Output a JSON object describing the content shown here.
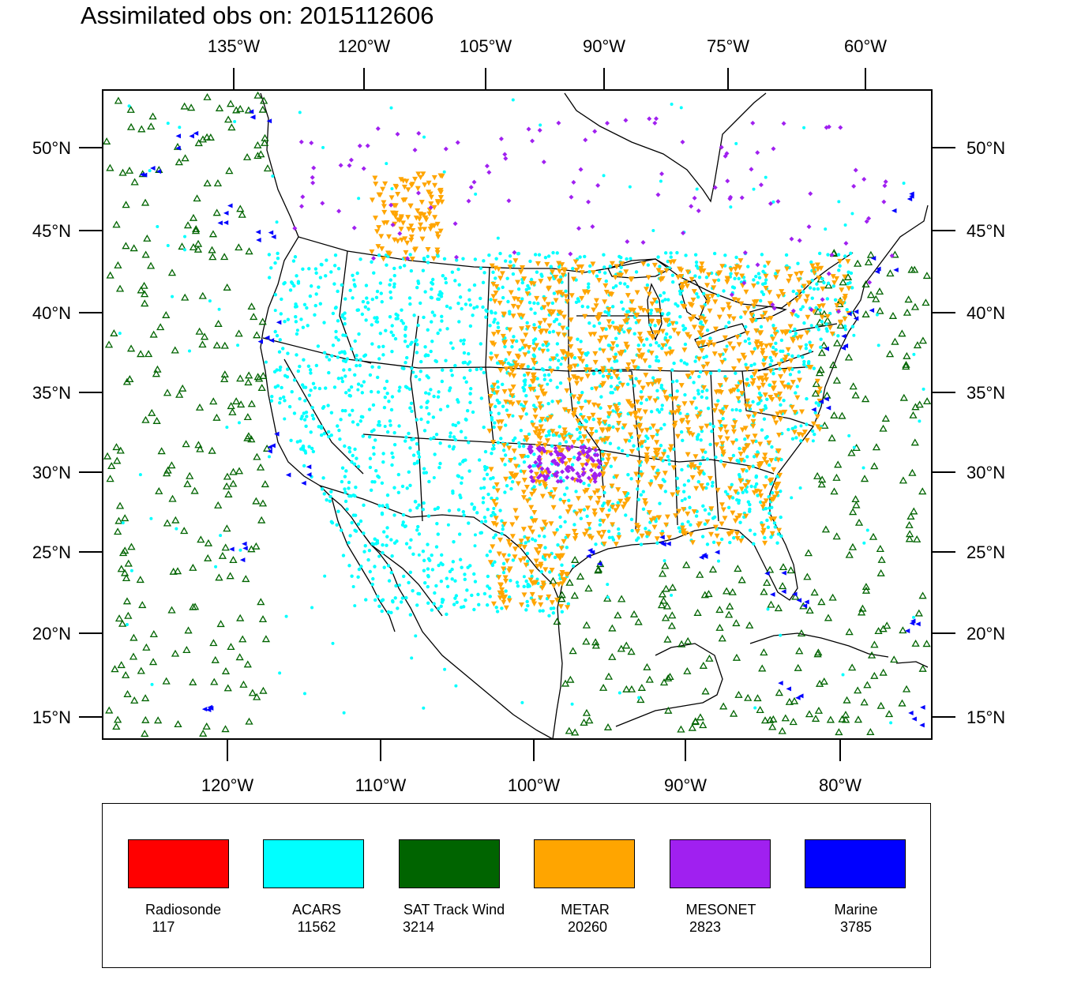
{
  "title": "Assimilated obs on: 2015112606",
  "map": {
    "projection": "lambert-conformal",
    "region": "North America / CONUS",
    "top_axis_labels": [
      "135°W",
      "120°W",
      "105°W",
      "90°W",
      "75°W",
      "60°W"
    ],
    "bottom_axis_labels": [
      "120°W",
      "110°W",
      "100°W",
      "90°W",
      "80°W"
    ],
    "left_axis_labels": [
      "50°N",
      "45°N",
      "40°N",
      "35°N",
      "30°N",
      "25°N",
      "20°N",
      "15°N"
    ],
    "right_axis_labels": [
      "50°N",
      "45°N",
      "40°N",
      "35°N",
      "30°N",
      "25°N",
      "20°N",
      "15°N"
    ]
  },
  "legend": [
    {
      "name": "Radiosonde",
      "count": "117",
      "color": "#ff0000",
      "symbol": "circle"
    },
    {
      "name": "ACARS",
      "count": "11562",
      "color": "#00ffff",
      "symbol": "dot"
    },
    {
      "name": "SAT Track Wind",
      "count": "3214",
      "color": "#006400",
      "symbol": "triangle-up-icon"
    },
    {
      "name": "METAR",
      "count": "20260",
      "color": "#ffa500",
      "symbol": "triangle-down-icon"
    },
    {
      "name": "MESONET",
      "count": "2823",
      "color": "#a020f0",
      "symbol": "diamond-icon"
    },
    {
      "name": "Marine",
      "count": "3785",
      "color": "#0000ff",
      "symbol": "triangle-left-icon"
    }
  ]
}
